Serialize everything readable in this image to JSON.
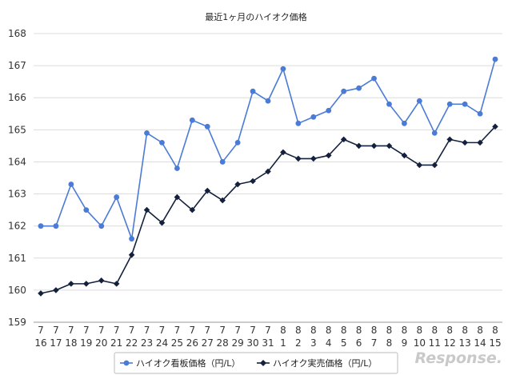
{
  "chart_data": {
    "type": "line",
    "title": "最近1ヶ月のハイオク価格",
    "xlabel": "",
    "ylabel": "",
    "ylim": [
      159,
      168
    ],
    "yticks": [
      159,
      160,
      161,
      162,
      163,
      164,
      165,
      166,
      167,
      168
    ],
    "grid": true,
    "legend_position": "bottom",
    "categories": [
      {
        "month": "7",
        "day": "16"
      },
      {
        "month": "7",
        "day": "17"
      },
      {
        "month": "7",
        "day": "18"
      },
      {
        "month": "7",
        "day": "19"
      },
      {
        "month": "7",
        "day": "20"
      },
      {
        "month": "7",
        "day": "21"
      },
      {
        "month": "7",
        "day": "22"
      },
      {
        "month": "7",
        "day": "23"
      },
      {
        "month": "7",
        "day": "24"
      },
      {
        "month": "7",
        "day": "25"
      },
      {
        "month": "7",
        "day": "26"
      },
      {
        "month": "7",
        "day": "27"
      },
      {
        "month": "7",
        "day": "28"
      },
      {
        "month": "7",
        "day": "29"
      },
      {
        "month": "7",
        "day": "30"
      },
      {
        "month": "7",
        "day": "31"
      },
      {
        "month": "8",
        "day": "1"
      },
      {
        "month": "8",
        "day": "2"
      },
      {
        "month": "8",
        "day": "3"
      },
      {
        "month": "8",
        "day": "4"
      },
      {
        "month": "8",
        "day": "5"
      },
      {
        "month": "8",
        "day": "6"
      },
      {
        "month": "8",
        "day": "7"
      },
      {
        "month": "8",
        "day": "8"
      },
      {
        "month": "8",
        "day": "9"
      },
      {
        "month": "8",
        "day": "10"
      },
      {
        "month": "8",
        "day": "11"
      },
      {
        "month": "8",
        "day": "12"
      },
      {
        "month": "8",
        "day": "13"
      },
      {
        "month": "8",
        "day": "14"
      },
      {
        "month": "8",
        "day": "15"
      }
    ],
    "series": [
      {
        "name": "ハイオク看板価格（円/L）",
        "color": "#4a7bd6",
        "marker": "circle",
        "values": [
          162.0,
          162.0,
          163.3,
          162.5,
          162.0,
          162.9,
          161.6,
          164.9,
          164.6,
          163.8,
          165.3,
          165.1,
          164.0,
          164.6,
          166.2,
          165.9,
          166.9,
          165.2,
          165.4,
          165.6,
          166.2,
          166.3,
          166.6,
          165.8,
          165.2,
          165.9,
          164.9,
          165.8,
          165.8,
          165.5,
          167.2
        ]
      },
      {
        "name": "ハイオク実売価格（円/L）",
        "color": "#14213d",
        "marker": "diamond",
        "values": [
          159.9,
          160.0,
          160.2,
          160.2,
          160.3,
          160.2,
          161.1,
          162.5,
          162.1,
          162.9,
          162.5,
          163.1,
          162.8,
          163.3,
          163.4,
          163.7,
          164.3,
          164.1,
          164.1,
          164.2,
          164.7,
          164.5,
          164.5,
          164.5,
          164.2,
          163.9,
          163.9,
          164.7,
          164.6,
          164.6,
          165.1
        ]
      }
    ]
  },
  "watermark": "Response."
}
